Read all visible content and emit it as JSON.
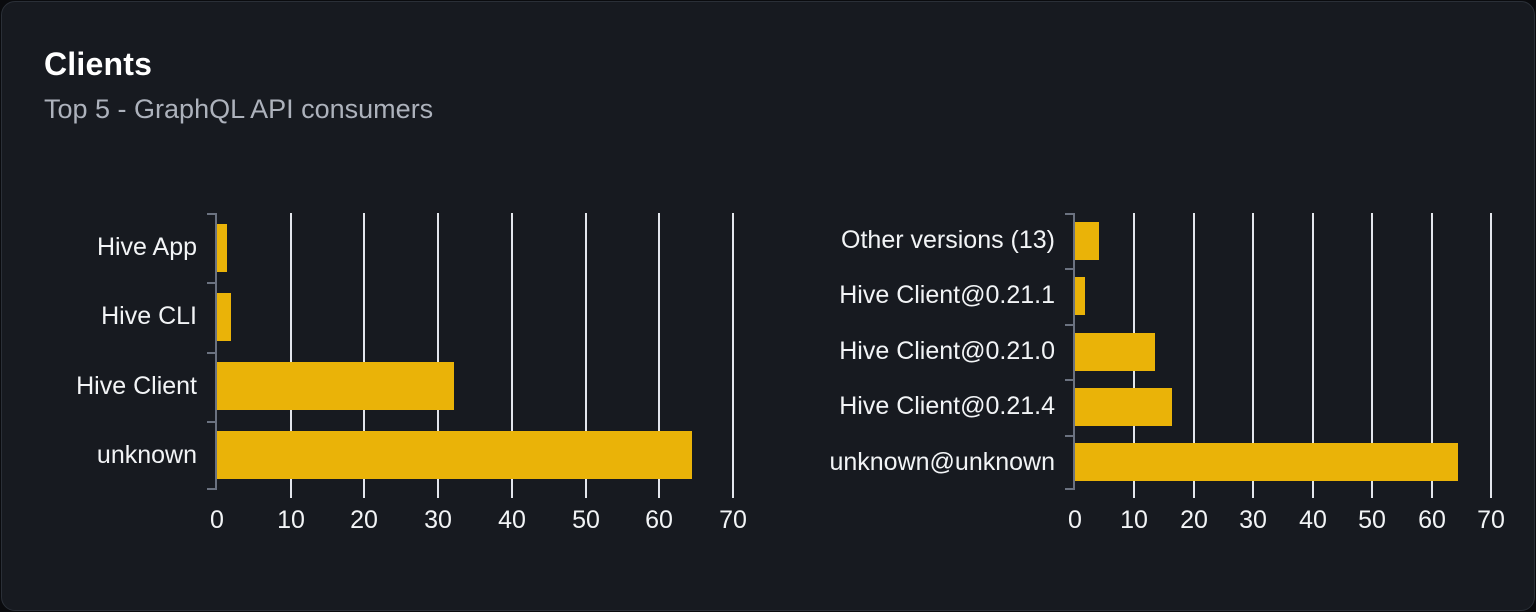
{
  "card": {
    "title": "Clients",
    "subtitle": "Top 5 - GraphQL API consumers"
  },
  "colors": {
    "bar": "#eab308",
    "card_background": "#171a20",
    "page_background": "#0a0b0e",
    "grid_line": "#e3e6ec",
    "axis_line": "#6b7280",
    "label_text": "#f2f4f6",
    "title_text": "#ffffff",
    "subtitle_text": "#adb2bc"
  },
  "chart_data": [
    {
      "type": "bar",
      "orientation": "horizontal",
      "title": "",
      "name": "clients-by-name",
      "categories": [
        "Hive App",
        "Hive CLI",
        "Hive Client",
        "unknown"
      ],
      "values": [
        1.4,
        1.9,
        32.1,
        64.4
      ],
      "xlim": [
        0,
        70
      ],
      "x_ticks": [
        "0",
        "10",
        "20",
        "30",
        "40",
        "50",
        "60",
        "70"
      ],
      "xlabel": "",
      "ylabel": "",
      "grid": true,
      "legend": false
    },
    {
      "type": "bar",
      "orientation": "horizontal",
      "title": "",
      "name": "clients-by-version",
      "categories": [
        "Other versions (13)",
        "Hive Client@0.21.1",
        "Hive Client@0.21.0",
        "Hive Client@0.21.4",
        "unknown@unknown"
      ],
      "values": [
        4.0,
        1.7,
        13.5,
        16.4,
        64.5
      ],
      "xlim": [
        0,
        70
      ],
      "x_ticks": [
        "0",
        "10",
        "20",
        "30",
        "40",
        "50",
        "60",
        "70"
      ],
      "xlabel": "",
      "ylabel": "",
      "grid": true,
      "legend": false
    }
  ]
}
